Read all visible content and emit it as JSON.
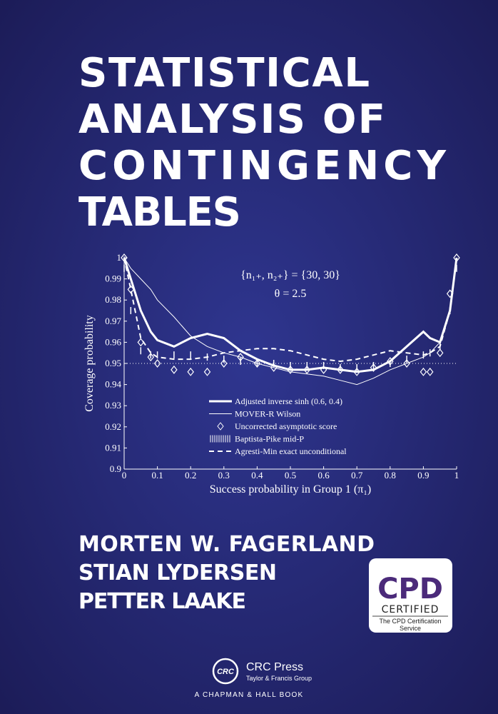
{
  "cover": {
    "title_lines": [
      "STATISTICAL",
      "ANALYSIS OF",
      "CONTINGENCY",
      "TABLES"
    ],
    "authors": [
      "MORTEN W. FAGERLAND",
      "STIAN LYDERSEN",
      "PETTER LAAKE"
    ],
    "badge": {
      "mark": "CPD",
      "certified": "CERTIFIED",
      "line1": "The CPD Certification",
      "line2": "Service"
    },
    "publisher": {
      "logo": "CRC",
      "name": "CRC Press",
      "group": "Taylor & Francis Group",
      "imprint": "A CHAPMAN & HALL BOOK"
    }
  },
  "chart_data": {
    "type": "line",
    "annotations": [
      "{n₁₊, n₂₊} = {30, 30}",
      "θ = 2.5"
    ],
    "x_label": "Success probability in Group 1 (π₁)",
    "y_label": "Coverage probability",
    "xlim": [
      0,
      1
    ],
    "ylim": [
      0.9,
      1
    ],
    "xticks": [
      0,
      0.1,
      0.2,
      0.3,
      0.4,
      0.5,
      0.6,
      0.7,
      0.8,
      0.9,
      1
    ],
    "yticks": [
      0.9,
      0.91,
      0.92,
      0.93,
      0.94,
      0.95,
      0.96,
      0.97,
      0.98,
      0.99,
      1
    ],
    "reference_line": 0.95,
    "x": [
      0,
      0.02,
      0.05,
      0.08,
      0.1,
      0.15,
      0.2,
      0.25,
      0.3,
      0.35,
      0.4,
      0.45,
      0.5,
      0.55,
      0.6,
      0.65,
      0.7,
      0.75,
      0.8,
      0.85,
      0.9,
      0.92,
      0.95,
      0.98,
      1
    ],
    "series": [
      {
        "name": "Adjusted inverse sinh (0.6, 0.4)",
        "color": "#ffffff",
        "style": "thick",
        "values": [
          1,
          0.99,
          0.975,
          0.965,
          0.961,
          0.958,
          0.962,
          0.964,
          0.962,
          0.956,
          0.952,
          0.949,
          0.947,
          0.947,
          0.948,
          0.947,
          0.946,
          0.947,
          0.951,
          0.958,
          0.965,
          0.962,
          0.96,
          0.975,
          1
        ]
      },
      {
        "name": "MOVER-R Wilson",
        "color": "#ffffff",
        "style": "thin",
        "values": [
          1,
          0.995,
          0.99,
          0.985,
          0.98,
          0.972,
          0.963,
          0.958,
          0.955,
          0.953,
          0.95,
          0.948,
          0.946,
          0.945,
          0.944,
          0.942,
          0.94,
          0.943,
          0.947,
          0.95,
          0.953,
          0.955,
          0.96,
          0.975,
          1
        ]
      },
      {
        "name": "Uncorrected asymptotic score",
        "color": "#ffffff",
        "style": "diamond",
        "values": [
          1,
          0.985,
          0.96,
          0.953,
          0.95,
          0.947,
          0.946,
          0.946,
          0.95,
          0.953,
          0.95,
          0.948,
          0.947,
          0.947,
          0.947,
          0.947,
          0.946,
          0.948,
          0.951,
          0.95,
          0.946,
          0.946,
          0.955,
          0.983,
          1
        ]
      },
      {
        "name": "Baptista-Pike mid-P",
        "color": "#ffffff",
        "style": "hatch",
        "values": [
          0.995,
          0.975,
          0.956,
          0.954,
          0.954,
          0.954,
          0.954,
          0.953,
          0.952,
          0.951,
          0.95,
          0.95,
          0.949,
          0.949,
          0.949,
          0.948,
          0.948,
          0.949,
          0.95,
          0.952,
          0.954,
          0.955,
          0.958,
          0.975,
          0.995
        ]
      },
      {
        "name": "Agresti-Min exact unconditional",
        "color": "#ffffff",
        "style": "dashed",
        "values": [
          1,
          0.985,
          0.962,
          0.955,
          0.953,
          0.952,
          0.952,
          0.953,
          0.955,
          0.956,
          0.957,
          0.957,
          0.956,
          0.954,
          0.952,
          0.951,
          0.952,
          0.954,
          0.956,
          0.955,
          0.954,
          0.955,
          0.958,
          0.975,
          1
        ]
      }
    ]
  }
}
